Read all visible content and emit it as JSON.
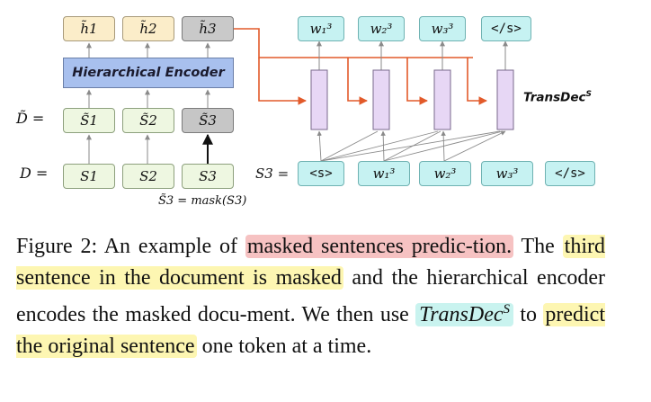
{
  "figure": {
    "h_top": [
      "h̃1",
      "h̃2",
      "h̃3"
    ],
    "encoder_label": "Hierarchical Encoder",
    "dtilde_label": "D̃ =",
    "s_tilde": [
      "S̃1",
      "S̃2",
      "S̃3"
    ],
    "d_label": "D =",
    "s": [
      "S1",
      "S2",
      "S3"
    ],
    "mask_note": "S̃3 = mask(S3)",
    "s3_label": "S3 =",
    "top_tokens": [
      "w₁³",
      "w₂³",
      "w₃³",
      "</s>"
    ],
    "bottom_tokens": [
      "<s>",
      "w₁³",
      "w₂³",
      "w₃³",
      "</s>"
    ],
    "transdec_label": "TransDec",
    "transdec_sup": "S"
  },
  "caption": {
    "prefix": "Figure 2:  An example of ",
    "highlight_1": "masked sentences predic-tion.",
    "text_1": " The ",
    "highlight_2": "third sentence in the document is masked",
    "text_2": " and the hierarchical encoder encodes the masked docu-ment. We then use ",
    "highlight_3": "TransDec",
    "highlight_3_sup": "S",
    "text_3": " to ",
    "highlight_4": "predict the original sentence",
    "text_4": " one token at a time."
  },
  "colors": {
    "red_highlight": "#f6c2c2",
    "yellow_highlight": "#fdf6b2",
    "cyan_highlight": "#c9f3ef",
    "arrow_orange": "#e25a2a",
    "encoder_blue": "#a8c0ee",
    "decoder_lavender": "#e7d7f5"
  }
}
